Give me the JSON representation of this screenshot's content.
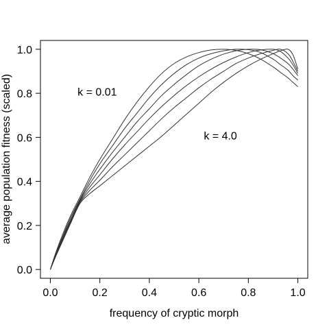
{
  "chart_data": {
    "type": "line",
    "title": "",
    "xlabel": "frequency of cryptic morph",
    "ylabel": "average population fitness (scaled)",
    "xlim": [
      -0.04,
      1.04
    ],
    "ylim": [
      -0.04,
      1.04
    ],
    "x_ticks": [
      0.0,
      0.2,
      0.4,
      0.6,
      0.8,
      1.0
    ],
    "x_tick_labels": [
      "0.0",
      "0.2",
      "0.4",
      "0.6",
      "0.8",
      "1.0"
    ],
    "y_ticks": [
      0.0,
      0.2,
      0.4,
      0.6,
      0.8,
      1.0
    ],
    "y_tick_labels": [
      "0.0",
      "0.2",
      "0.4",
      "0.6",
      "0.8",
      "1.0"
    ],
    "grid": false,
    "legend": "none",
    "line_color": "#333333",
    "annotations": [
      {
        "text": "k = 0.01",
        "x": 0.11,
        "y": 0.79
      },
      {
        "text": "k = 4.0",
        "x": 0.62,
        "y": 0.59
      }
    ],
    "series": [
      {
        "x": [
          0,
          0.02,
          0.05,
          0.08,
          0.12,
          0.16,
          0.2,
          0.25,
          0.3,
          0.35,
          0.4,
          0.45,
          0.5,
          0.55,
          0.6,
          0.65,
          0.7,
          0.75,
          0.8,
          0.85,
          0.9,
          0.93,
          0.96,
          0.98,
          1.0
        ],
        "y": [
          0,
          0.07,
          0.16,
          0.24,
          0.33,
          0.42,
          0.5,
          0.59,
          0.68,
          0.76,
          0.83,
          0.89,
          0.935,
          0.965,
          0.985,
          0.997,
          1.0,
          0.995,
          0.98,
          0.955,
          0.92,
          0.895,
          0.87,
          0.85,
          0.83
        ]
      },
      {
        "x": [
          0,
          0.02,
          0.05,
          0.08,
          0.12,
          0.16,
          0.2,
          0.25,
          0.3,
          0.35,
          0.4,
          0.45,
          0.5,
          0.55,
          0.6,
          0.65,
          0.7,
          0.75,
          0.8,
          0.85,
          0.9,
          0.93,
          0.96,
          0.98,
          1.0
        ],
        "y": [
          0,
          0.065,
          0.15,
          0.23,
          0.32,
          0.405,
          0.48,
          0.56,
          0.64,
          0.71,
          0.78,
          0.84,
          0.89,
          0.93,
          0.96,
          0.98,
          0.993,
          1.0,
          0.998,
          0.985,
          0.955,
          0.93,
          0.905,
          0.88,
          0.86
        ]
      },
      {
        "x": [
          0,
          0.02,
          0.05,
          0.08,
          0.12,
          0.16,
          0.2,
          0.25,
          0.3,
          0.35,
          0.4,
          0.45,
          0.5,
          0.55,
          0.6,
          0.65,
          0.7,
          0.75,
          0.8,
          0.85,
          0.9,
          0.93,
          0.96,
          0.98,
          1.0
        ],
        "y": [
          0,
          0.06,
          0.145,
          0.22,
          0.315,
          0.39,
          0.455,
          0.53,
          0.6,
          0.67,
          0.73,
          0.79,
          0.84,
          0.885,
          0.925,
          0.955,
          0.978,
          0.993,
          1.0,
          0.998,
          0.98,
          0.96,
          0.935,
          0.91,
          0.88
        ]
      },
      {
        "x": [
          0,
          0.02,
          0.05,
          0.08,
          0.12,
          0.16,
          0.2,
          0.25,
          0.3,
          0.35,
          0.4,
          0.45,
          0.5,
          0.55,
          0.6,
          0.65,
          0.7,
          0.75,
          0.8,
          0.85,
          0.9,
          0.93,
          0.96,
          0.98,
          1.0
        ],
        "y": [
          0,
          0.058,
          0.14,
          0.215,
          0.31,
          0.375,
          0.43,
          0.5,
          0.565,
          0.625,
          0.685,
          0.74,
          0.79,
          0.835,
          0.875,
          0.91,
          0.94,
          0.965,
          0.985,
          0.997,
          1.0,
          0.99,
          0.96,
          0.93,
          0.89
        ]
      },
      {
        "x": [
          0,
          0.02,
          0.05,
          0.08,
          0.12,
          0.16,
          0.2,
          0.25,
          0.3,
          0.35,
          0.4,
          0.45,
          0.5,
          0.55,
          0.6,
          0.65,
          0.7,
          0.75,
          0.8,
          0.85,
          0.9,
          0.93,
          0.96,
          0.98,
          1.0
        ],
        "y": [
          0,
          0.055,
          0.135,
          0.21,
          0.305,
          0.36,
          0.405,
          0.465,
          0.52,
          0.575,
          0.63,
          0.685,
          0.735,
          0.78,
          0.825,
          0.865,
          0.9,
          0.935,
          0.96,
          0.98,
          0.995,
          1.0,
          0.98,
          0.945,
          0.9
        ]
      },
      {
        "x": [
          0,
          0.02,
          0.05,
          0.08,
          0.12,
          0.16,
          0.2,
          0.25,
          0.3,
          0.35,
          0.4,
          0.45,
          0.5,
          0.55,
          0.6,
          0.65,
          0.7,
          0.75,
          0.8,
          0.85,
          0.9,
          0.93,
          0.96,
          0.98,
          1.0
        ],
        "y": [
          0,
          0.055,
          0.13,
          0.205,
          0.3,
          0.345,
          0.38,
          0.425,
          0.47,
          0.515,
          0.56,
          0.605,
          0.655,
          0.705,
          0.755,
          0.805,
          0.85,
          0.89,
          0.925,
          0.955,
          0.98,
          0.993,
          1.0,
          0.975,
          0.91
        ]
      }
    ]
  }
}
